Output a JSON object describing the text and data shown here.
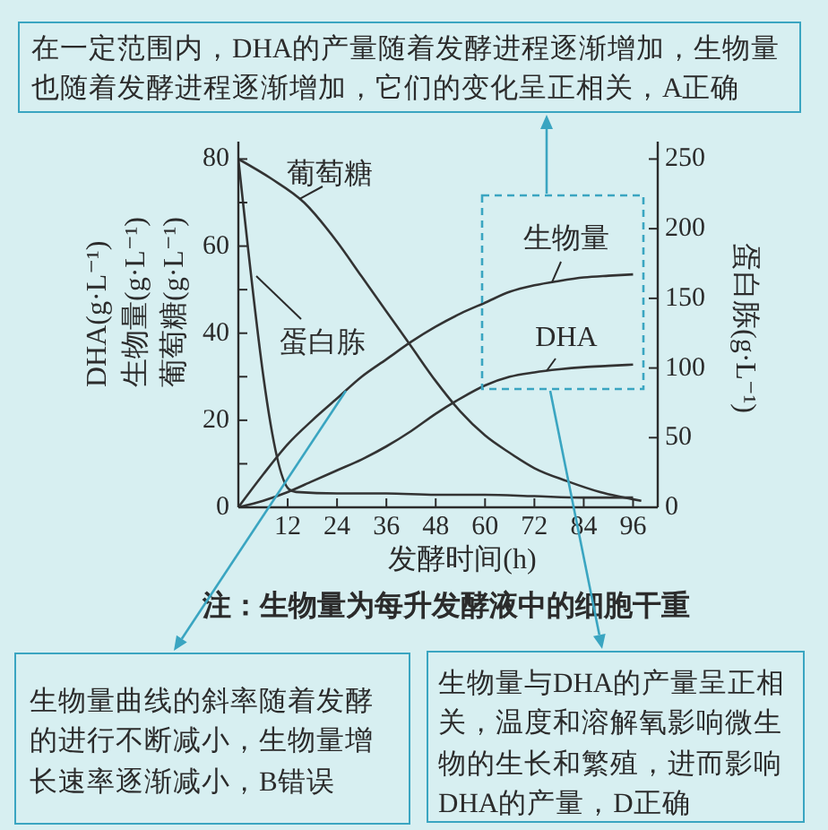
{
  "chart_data": {
    "type": "line",
    "xlabel": "发酵时间(h)",
    "ylabel": "DHA(g·L⁻¹)\n生物量(g·L⁻¹)\n葡萄糖(g·L⁻¹)",
    "y2label": "蛋白胨(g·L⁻¹)",
    "annotations": [
      "在一定范围内，DHA的产量随着发酵进程逐渐增加，生物量也随着发酵进程逐渐增加，它们的变化呈正相关，A正确",
      "生物量曲线的斜率随着发酵的进行不断减小，生物量增长速率逐渐减小，B错误",
      "生物量与DHA的产量呈正相关，温度和溶解氧影响微生物的生长和繁殖，进而影响DHA的产量，D正确",
      "注：生物量为每升发酵液中的细胞干重"
    ],
    "series": [
      {
        "name": "葡萄糖",
        "color": "#333333",
        "x": [
          0,
          8,
          16,
          24,
          30,
          36,
          42,
          48,
          54,
          60,
          66,
          72,
          80,
          88,
          98
        ],
        "values": [
          80,
          75.5,
          70,
          61,
          53,
          45,
          37,
          29,
          22,
          16.5,
          12.5,
          9,
          6,
          3.5,
          1.5
        ]
      },
      {
        "name": "蛋白胨",
        "color": "#333333",
        "axis": "y2",
        "x": [
          0,
          12.3,
          14,
          24,
          36,
          48,
          60,
          72,
          84,
          96
        ],
        "values": [
          250,
          13,
          11,
          10,
          10,
          9,
          9,
          8,
          7,
          7
        ]
      },
      {
        "name": "生物量",
        "color": "#333333",
        "x": [
          0,
          6,
          12,
          18,
          24,
          30,
          36,
          42,
          48,
          54,
          60,
          66,
          72,
          78,
          84,
          90,
          96
        ],
        "values": [
          0,
          7.5,
          14.5,
          20,
          25,
          30,
          34,
          38,
          41.5,
          44.5,
          47,
          49.5,
          51,
          52,
          52.8,
          53.2,
          53.5
        ]
      },
      {
        "name": "DHA",
        "color": "#333333",
        "x": [
          0,
          6,
          12,
          18,
          24,
          30,
          36,
          42,
          48,
          54,
          60,
          66,
          72,
          78,
          84,
          90,
          96
        ],
        "values": [
          0,
          1.5,
          3.5,
          6,
          8.5,
          11,
          14,
          17.5,
          21.5,
          25,
          28,
          30,
          31,
          31.7,
          32.2,
          32.5,
          32.8
        ]
      }
    ],
    "xlim": [
      0,
      102
    ],
    "xticks": [
      12,
      24,
      36,
      48,
      60,
      72,
      84,
      96
    ],
    "ylim": [
      0,
      84
    ],
    "yticks": [
      0,
      {
        "value": 10,
        "label": null
      },
      20,
      {
        "value": 30,
        "label": null
      },
      40,
      {
        "value": 50,
        "label": null
      },
      60,
      {
        "value": 70,
        "label": null
      },
      80
    ],
    "y2lim": [
      0,
      262.5
    ],
    "y2ticks": [
      0,
      50,
      100,
      150,
      200,
      250
    ],
    "line_style": "solid"
  }
}
